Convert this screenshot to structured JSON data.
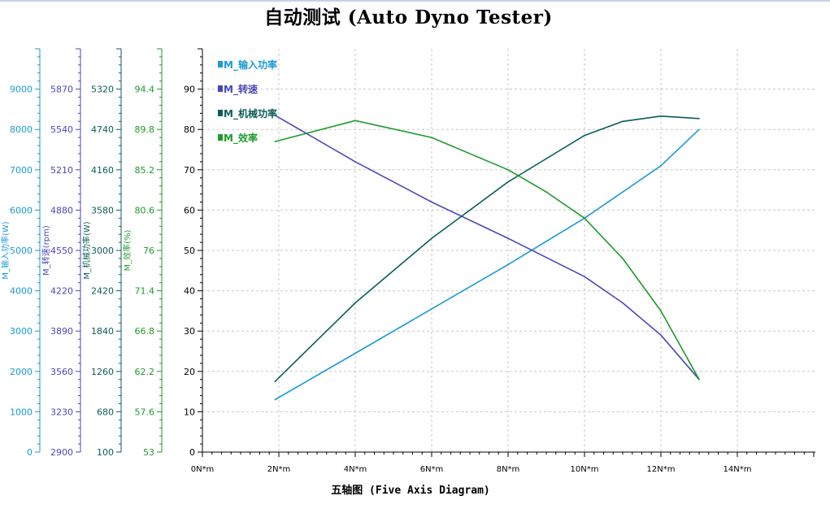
{
  "title": "自动测试 (Auto Dyno Tester)",
  "chart_data": {
    "type": "line",
    "title": "自动测试 (Auto Dyno Tester)",
    "xlabel": "五轴图 (Five Axis Diagram)",
    "x_unit": "N*m",
    "x_ticks": [
      "0N*m",
      "2N*m",
      "4N*m",
      "6N*m",
      "8N*m",
      "10N*m",
      "12N*m",
      "14N*m"
    ],
    "xlim": [
      0,
      16
    ],
    "grid": true,
    "legend_position": "top-left",
    "axes": [
      {
        "id": "ax-input-power",
        "label": "M_输入功率(W)",
        "color": "#1a9ad6",
        "min": 0,
        "max": 10000,
        "ticks": [
          "0",
          "1000",
          "2000",
          "3000",
          "4000",
          "5000",
          "6000",
          "7000",
          "8000",
          "9000"
        ]
      },
      {
        "id": "ax-speed",
        "label": "M_转速(rpm)",
        "color": "#4b47b8",
        "min": 2900,
        "max": 6200,
        "ticks": [
          "2900",
          "3230",
          "3560",
          "3890",
          "4220",
          "4550",
          "4880",
          "5210",
          "5540",
          "5870"
        ]
      },
      {
        "id": "ax-mech-power",
        "label": "M_机械功率(W)",
        "color": "#0b5e5a",
        "min": 100,
        "max": 5900,
        "ticks": [
          "100",
          "680",
          "1260",
          "1840",
          "2420",
          "3000",
          "3580",
          "4160",
          "4740",
          "5320"
        ]
      },
      {
        "id": "ax-efficiency",
        "label": "M_效率(%)",
        "color": "#1f9a2b",
        "min": 53,
        "max": 99,
        "ticks": [
          "53",
          "57.6",
          "62.2",
          "66.8",
          "71.4",
          "76",
          "80.6",
          "85.2",
          "89.8",
          "94.4"
        ]
      },
      {
        "id": "ax-main",
        "label": "",
        "color": "#000000",
        "min": 0,
        "max": 100,
        "ticks": [
          "0",
          "10",
          "20",
          "30",
          "40",
          "50",
          "60",
          "70",
          "80",
          "90"
        ]
      }
    ],
    "series": [
      {
        "name": "M_输入功率",
        "color": "#1a9ad6",
        "x": [
          1.9,
          4,
          6,
          8,
          10,
          11,
          12,
          13
        ],
        "y": [
          13,
          24.5,
          35.5,
          46.5,
          58,
          64.5,
          71,
          80
        ]
      },
      {
        "name": "M_转速",
        "color": "#4b47b8",
        "x": [
          1.9,
          4,
          6,
          8,
          10,
          11,
          12,
          13
        ],
        "y": [
          83.5,
          72,
          62,
          53,
          43.5,
          37,
          29,
          18
        ]
      },
      {
        "name": "M_机械功率",
        "color": "#0b5e5a",
        "x": [
          1.9,
          4,
          6,
          8,
          10,
          11,
          12,
          13
        ],
        "y": [
          17.5,
          37,
          53,
          67,
          78.5,
          82,
          83.3,
          82.7
        ]
      },
      {
        "name": "M_效率",
        "color": "#1f9a2b",
        "x": [
          1.9,
          4,
          6,
          8,
          9,
          10,
          11,
          12,
          13
        ],
        "y": [
          77,
          82.2,
          78,
          70,
          64.5,
          58,
          48,
          35,
          18
        ]
      }
    ]
  }
}
